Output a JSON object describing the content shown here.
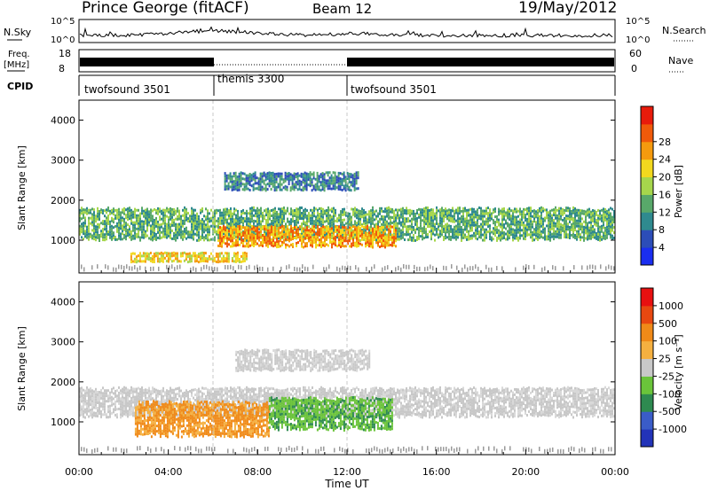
{
  "header": {
    "station": "Prince George (fitACF)",
    "beam": "Beam 12",
    "date": "19/May/2012"
  },
  "noise_panel": {
    "left_label": "N.Sky",
    "right_label": "N.Search",
    "ticks": [
      "10^5",
      "10^0"
    ]
  },
  "freq_panel": {
    "left_label_1": "Freq.",
    "left_label_2": "[MHz]",
    "left_ticks": [
      "18",
      "8"
    ],
    "right_label": "Nave",
    "right_ticks": [
      "60",
      "0"
    ]
  },
  "cpid_panel": {
    "label": "CPID",
    "segments": [
      {
        "name": "twofsound 3501",
        "start_h": 0,
        "end_h": 6
      },
      {
        "name": "themis 3300",
        "start_h": 6,
        "end_h": 12
      },
      {
        "name": "twofsound 3501",
        "start_h": 12,
        "end_h": 24
      }
    ]
  },
  "time_axis": {
    "label": "Time UT",
    "ticks": [
      "00:00",
      "04:00",
      "08:00",
      "12:00",
      "16:00",
      "20:00",
      "00:00"
    ]
  },
  "chart_data": [
    {
      "type": "heatmap",
      "title": "Power",
      "xlabel": "Time UT",
      "ylabel": "Slant Range [km]",
      "xlim": [
        0,
        24
      ],
      "ylim": [
        180,
        4500
      ],
      "yticks": [
        "1000",
        "2000",
        "3000",
        "4000"
      ],
      "colorbar": {
        "label": "Power [dB]",
        "range": [
          0,
          32
        ],
        "ticks": [
          "4",
          "8",
          "12",
          "16",
          "20",
          "24",
          "28"
        ],
        "colors": [
          "#1a2ef0",
          "#2c4db8",
          "#2f8a8f",
          "#58a86a",
          "#a6d64c",
          "#f2d81e",
          "#f59a0e",
          "#f05a0a",
          "#e81b0b"
        ]
      },
      "features": [
        {
          "name": "main echo band",
          "t_start": 0,
          "t_end": 24,
          "range_km": [
            1050,
            1800
          ],
          "power_db": 12
        },
        {
          "name": "strong echoes",
          "t_start": 6.2,
          "t_end": 14.2,
          "range_km": [
            850,
            1350
          ],
          "power_db": 27
        },
        {
          "name": "upper band",
          "t_start": 6.5,
          "t_end": 12.5,
          "range_km": [
            2300,
            2700
          ],
          "power_db": 10
        },
        {
          "name": "near-range echoes",
          "t_start": 2.3,
          "t_end": 7.5,
          "range_km": [
            450,
            700
          ],
          "power_db": 20
        }
      ]
    },
    {
      "type": "heatmap",
      "title": "Velocity",
      "xlabel": "Time UT",
      "ylabel": "Slant Range [km]",
      "xlim": [
        0,
        24
      ],
      "ylim": [
        180,
        4500
      ],
      "yticks": [
        "1000",
        "2000",
        "3000",
        "4000"
      ],
      "colorbar": {
        "label": "Velocity [m s⁻¹]",
        "ticks": [
          "1000",
          "500",
          "100",
          "25",
          "-25",
          "-100",
          "-500",
          "-1000"
        ],
        "colors": [
          "#2233b8",
          "#3a5cc8",
          "#2e8a50",
          "#6ac43a",
          "#c8c8c8",
          "#f5b040",
          "#f08a18",
          "#e84810",
          "#e81010"
        ]
      },
      "features": [
        {
          "name": "ground scatter band",
          "t_start": 0,
          "t_end": 24,
          "range_km": [
            1150,
            1850
          ],
          "velocity": 0
        },
        {
          "name": "negative velocity echoes",
          "t_start": 2.5,
          "t_end": 8.5,
          "range_km": [
            700,
            1500
          ],
          "velocity": -150
        },
        {
          "name": "positive velocity echoes",
          "t_start": 8.5,
          "t_end": 14,
          "range_km": [
            850,
            1600
          ],
          "velocity": 150
        },
        {
          "name": "upper ground scatter",
          "t_start": 7,
          "t_end": 13,
          "range_km": [
            2300,
            2800
          ],
          "velocity": 0
        }
      ]
    }
  ]
}
